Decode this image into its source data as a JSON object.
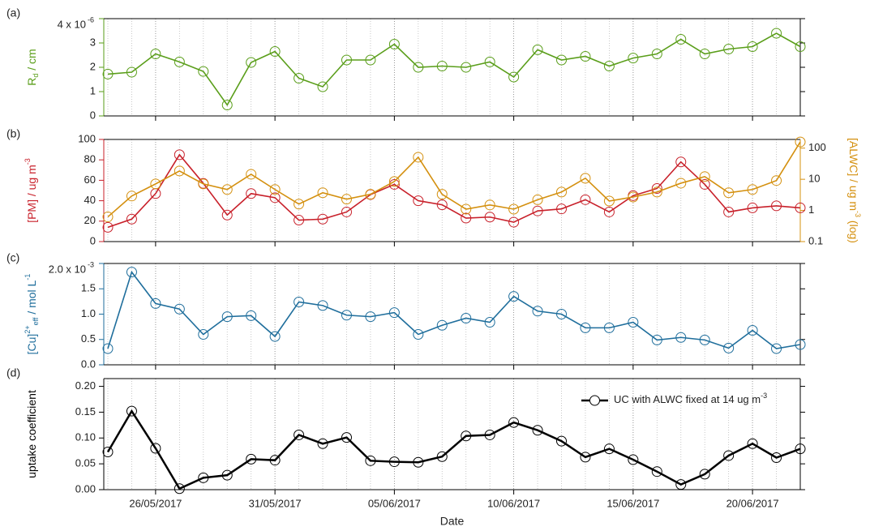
{
  "chart_data": [
    {
      "type": "line",
      "panel_label": "(a)",
      "ylabel": [
        "R",
        "d",
        " / cm"
      ],
      "x": [
        "24/05/2017",
        "25/05/2017",
        "26/05/2017",
        "27/05/2017",
        "28/05/2017",
        "29/05/2017",
        "30/05/2017",
        "31/05/2017",
        "01/06/2017",
        "02/06/2017",
        "03/06/2017",
        "04/06/2017",
        "05/06/2017",
        "06/06/2017",
        "07/06/2017",
        "08/06/2017",
        "09/06/2017",
        "10/06/2017",
        "11/06/2017",
        "12/06/2017",
        "13/06/2017",
        "14/06/2017",
        "15/06/2017",
        "16/06/2017",
        "17/06/2017",
        "18/06/2017",
        "19/06/2017",
        "20/06/2017",
        "21/06/2017",
        "22/06/2017"
      ],
      "xlim": [
        "24/05/2017",
        "22/06/2017"
      ],
      "ylim": [
        0,
        4
      ],
      "yticks": [
        0,
        1,
        2,
        3,
        {
          "value": 4,
          "label": "4 x 10"
        }
      ],
      "ytick_exponent": "-6",
      "series": [
        {
          "color": "#5a9e1a",
          "values": [
            1.72,
            1.8,
            2.55,
            2.22,
            1.83,
            0.45,
            2.2,
            2.65,
            1.55,
            1.2,
            2.3,
            2.3,
            2.95,
            2.0,
            2.05,
            2.0,
            2.22,
            1.6,
            2.72,
            2.3,
            2.45,
            2.05,
            2.38,
            2.55,
            3.15,
            2.55,
            2.75,
            2.85,
            3.4,
            2.85
          ]
        }
      ]
    },
    {
      "type": "line",
      "panel_label": "(b)",
      "ylabel": [
        "[PM] / ug m",
        "-3"
      ],
      "y2label": [
        "[ALWC] / ug m",
        "-3",
        " (log)"
      ],
      "x": [
        "24/05/2017",
        "25/05/2017",
        "26/05/2017",
        "27/05/2017",
        "28/05/2017",
        "29/05/2017",
        "30/05/2017",
        "31/05/2017",
        "01/06/2017",
        "02/06/2017",
        "03/06/2017",
        "04/06/2017",
        "05/06/2017",
        "06/06/2017",
        "07/06/2017",
        "08/06/2017",
        "09/06/2017",
        "10/06/2017",
        "11/06/2017",
        "12/06/2017",
        "13/06/2017",
        "14/06/2017",
        "15/06/2017",
        "16/06/2017",
        "17/06/2017",
        "18/06/2017",
        "19/06/2017",
        "20/06/2017",
        "21/06/2017",
        "22/06/2017"
      ],
      "xlim": [
        "24/05/2017",
        "22/06/2017"
      ],
      "ylim": [
        0,
        100
      ],
      "yticks": [
        0,
        20,
        40,
        60,
        80,
        100
      ],
      "y2lim": [
        0.1,
        190
      ],
      "y2ticks": [
        0.1,
        1,
        10,
        100
      ],
      "y2scale": "log",
      "series": [
        {
          "color": "#c8202a",
          "values": [
            14,
            22,
            47,
            85,
            57,
            26,
            47,
            43,
            21,
            22,
            29,
            46,
            56,
            40,
            36,
            23,
            24,
            19,
            30,
            32,
            41,
            29,
            45,
            52,
            78,
            56,
            29,
            33,
            35,
            33
          ]
        },
        {
          "color": "#d4900f",
          "axis": "y2",
          "values": [
            0.62,
            2.9,
            7.1,
            18.5,
            7.1,
            4.7,
            14.5,
            4.7,
            1.6,
            3.7,
            2.3,
            3.3,
            8.5,
            51,
            3.3,
            1.1,
            1.5,
            1.1,
            2.2,
            3.9,
            10.8,
            2.0,
            2.7,
            3.9,
            7.5,
            12.2,
            3.7,
            4.7,
            9.1,
            158
          ]
        }
      ]
    },
    {
      "type": "line",
      "panel_label": "(c)",
      "ylabel": [
        "[Cu]",
        "2+",
        "eff",
        " / mol L",
        "-1"
      ],
      "x": [
        "24/05/2017",
        "25/05/2017",
        "26/05/2017",
        "27/05/2017",
        "28/05/2017",
        "29/05/2017",
        "30/05/2017",
        "31/05/2017",
        "01/06/2017",
        "02/06/2017",
        "03/06/2017",
        "04/06/2017",
        "05/06/2017",
        "06/06/2017",
        "07/06/2017",
        "08/06/2017",
        "09/06/2017",
        "10/06/2017",
        "11/06/2017",
        "12/06/2017",
        "13/06/2017",
        "14/06/2017",
        "15/06/2017",
        "16/06/2017",
        "17/06/2017",
        "18/06/2017",
        "19/06/2017",
        "20/06/2017",
        "21/06/2017",
        "22/06/2017"
      ],
      "xlim": [
        "24/05/2017",
        "22/06/2017"
      ],
      "ylim": [
        0,
        2.0
      ],
      "yticks": [
        {
          "value": 0,
          "label": "0.0"
        },
        0.5,
        {
          "value": 1,
          "label": "1.0"
        },
        1.5,
        {
          "value": 2,
          "label": "2.0 x 10"
        }
      ],
      "ytick_exponent": "-3",
      "series": [
        {
          "color": "#1f6e9c",
          "values": [
            0.32,
            1.83,
            1.21,
            1.1,
            0.6,
            0.95,
            0.97,
            0.56,
            1.24,
            1.17,
            0.98,
            0.95,
            1.03,
            0.6,
            0.78,
            0.92,
            0.84,
            1.35,
            1.06,
            1.0,
            0.73,
            0.73,
            0.84,
            0.49,
            0.54,
            0.49,
            0.33,
            0.68,
            0.32,
            0.4
          ]
        }
      ]
    },
    {
      "type": "line",
      "panel_label": "(d)",
      "ylabel": [
        "uptake coefficient"
      ],
      "xlabel": "Date",
      "x": [
        "24/05/2017",
        "25/05/2017",
        "26/05/2017",
        "27/05/2017",
        "28/05/2017",
        "29/05/2017",
        "30/05/2017",
        "31/05/2017",
        "01/06/2017",
        "02/06/2017",
        "03/06/2017",
        "04/06/2017",
        "05/06/2017",
        "06/06/2017",
        "07/06/2017",
        "08/06/2017",
        "09/06/2017",
        "10/06/2017",
        "11/06/2017",
        "12/06/2017",
        "13/06/2017",
        "14/06/2017",
        "15/06/2017",
        "16/06/2017",
        "17/06/2017",
        "18/06/2017",
        "19/06/2017",
        "20/06/2017",
        "21/06/2017",
        "22/06/2017"
      ],
      "xlim": [
        "24/05/2017",
        "22/06/2017"
      ],
      "xticks": [
        "26/05/2017",
        "31/05/2017",
        "05/06/2017",
        "10/06/2017",
        "15/06/2017",
        "20/06/2017"
      ],
      "ylim": [
        0,
        0.215
      ],
      "yticks": [
        {
          "value": 0,
          "label": "0.00"
        },
        0.05,
        {
          "value": 0.1,
          "label": "0.10"
        },
        0.15,
        {
          "value": 0.2,
          "label": "0.20"
        }
      ],
      "legend": "upper right",
      "series": [
        {
          "name": "UC with ALWC fixed at 14 ug m",
          "name_sup": "-3",
          "color": "#000000",
          "values": [
            0.073,
            0.152,
            0.08,
            0.002,
            0.023,
            0.028,
            0.059,
            0.057,
            0.106,
            0.089,
            0.101,
            0.056,
            0.054,
            0.053,
            0.064,
            0.104,
            0.106,
            0.13,
            0.115,
            0.094,
            0.063,
            0.079,
            0.058,
            0.035,
            0.01,
            0.03,
            0.066,
            0.089,
            0.062,
            0.079
          ]
        }
      ]
    }
  ]
}
